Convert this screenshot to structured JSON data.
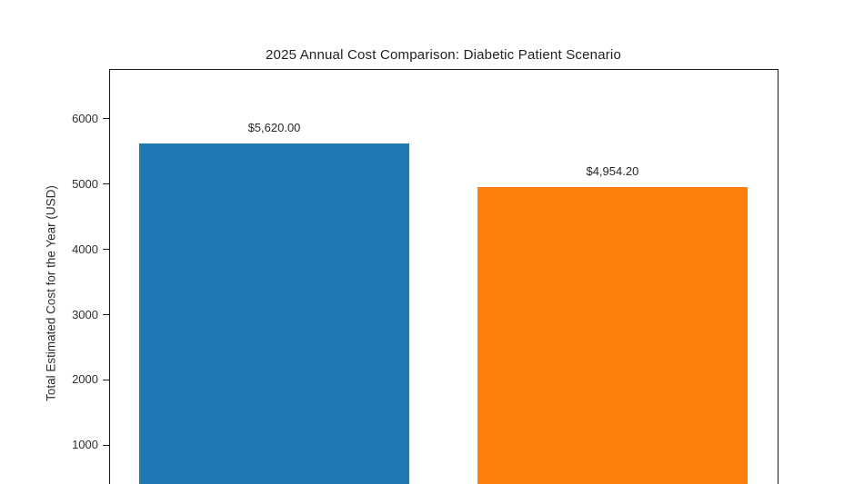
{
  "figure": {
    "background": "#ffffff",
    "frame_color": "#1a1a1a"
  },
  "chart_data": {
    "type": "bar",
    "title": "2025 Annual Cost Comparison: Diabetic Patient Scenario",
    "xlabel": "",
    "ylabel": "Total Estimated Cost for the Year (USD)",
    "bars": [
      {
        "value": 5620.0,
        "data_label": "$5,620.00",
        "color": "#1f77b4"
      },
      {
        "value": 4954.2,
        "data_label": "$4,954.20",
        "color": "#ff7f0e"
      }
    ],
    "y_ticks": [
      1000,
      2000,
      3000,
      4000,
      5000,
      6000
    ],
    "y_axis_visible_range": [
      390,
      6780
    ],
    "grid": false,
    "legend": "none",
    "layout_notes": "Figure cropped at bottom edge: x-axis baseline and category tick labels are not visible; bars extend past the bottom of the image."
  }
}
